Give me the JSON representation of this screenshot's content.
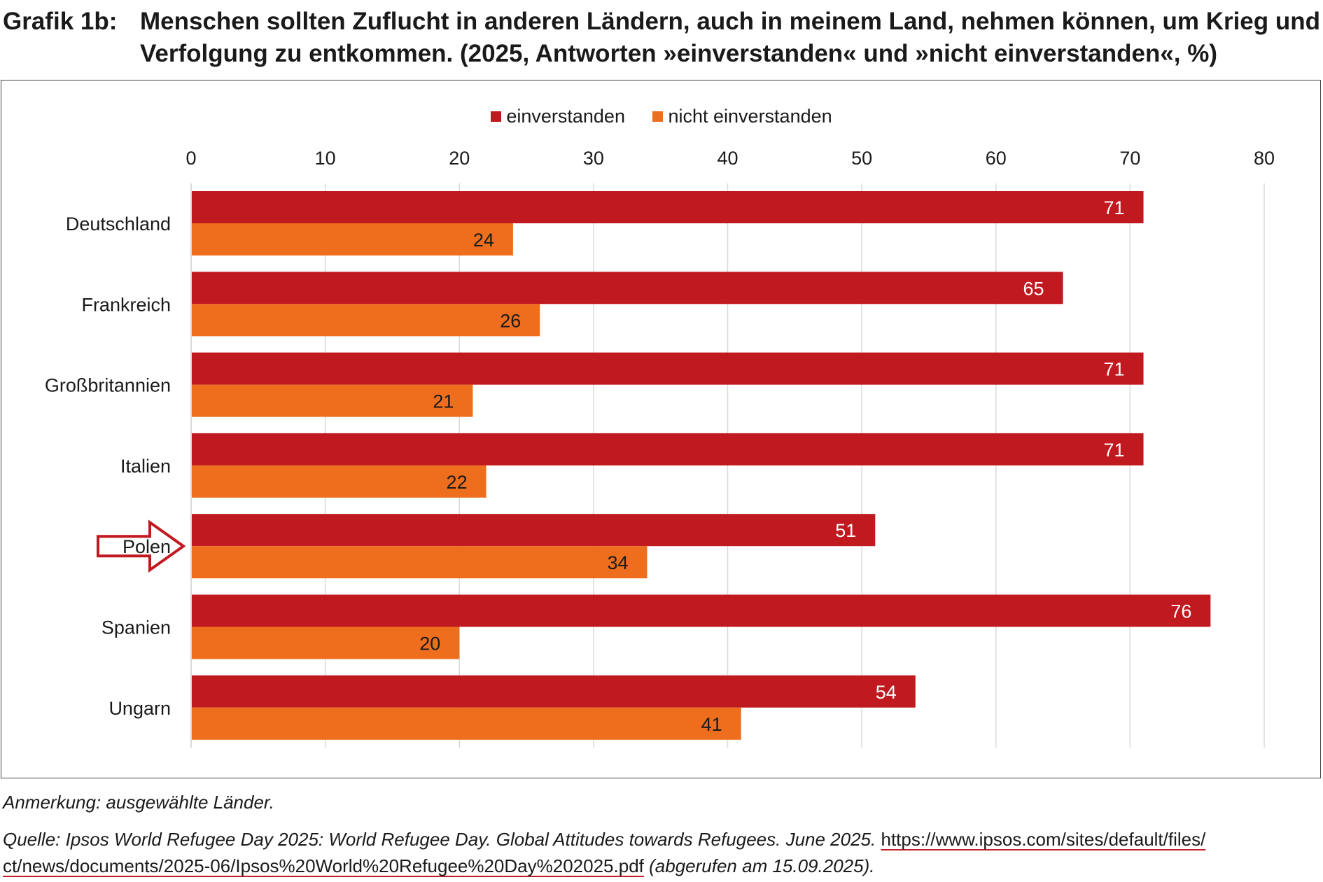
{
  "title": {
    "label": "Grafik 1b:",
    "line1": "Menschen sollten Zuflucht in anderen Ländern, auch in meinem Land, nehmen können, um Krieg und",
    "line2": "Verfolgung zu entkommen. (2025, Antworten »einverstanden« und »nicht einverstanden«, %)"
  },
  "colors": {
    "einverstanden": "#c0191f",
    "nicht_einverstanden": "#ee6e1e",
    "grid": "#d9d9d9",
    "arrow": "#c0191f"
  },
  "chart_data": {
    "type": "bar",
    "orientation": "horizontal",
    "categories": [
      "Deutschland",
      "Frankreich",
      "Großbritannien",
      "Italien",
      "Polen",
      "Spanien",
      "Ungarn"
    ],
    "series": [
      {
        "name": "einverstanden",
        "values": [
          71,
          65,
          71,
          71,
          51,
          76,
          54
        ]
      },
      {
        "name": "nicht einverstanden",
        "values": [
          24,
          26,
          21,
          22,
          34,
          20,
          41
        ]
      }
    ],
    "x_ticks": [
      "0",
      "10",
      "20",
      "30",
      "40",
      "50",
      "60",
      "70",
      "80"
    ],
    "xlim": [
      0,
      80
    ],
    "grid": true,
    "legend_position": "top",
    "highlighted_category": "Polen"
  },
  "note": "Anmerkung: ausgewählte Länder.",
  "source": {
    "prefix": "Quelle: Ipsos World Refugee Day 2025: World Refugee Day. Global Attitudes towards Refugees. June 2025.",
    "url_part1": "https://www.ipsos.com/sites/default/files/",
    "url_part2": "ct/news/documents/2025-06/Ipsos%20World%20Refugee%20Day%202025.pdf",
    "suffix": "(abgerufen am 15.09.2025)."
  }
}
